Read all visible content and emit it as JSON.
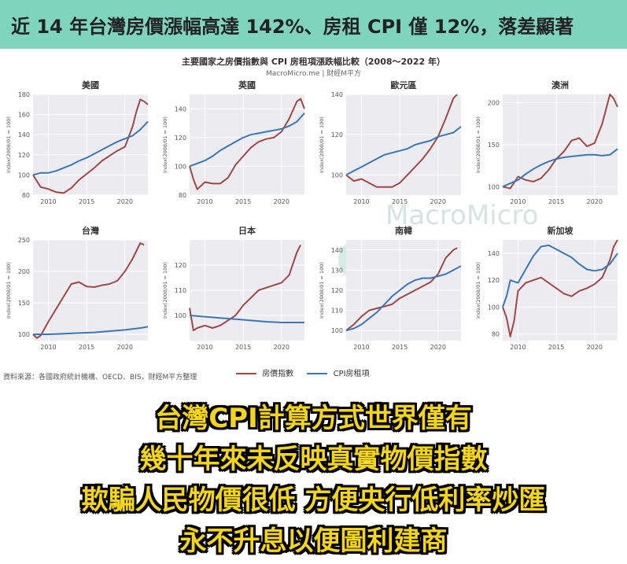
{
  "banner": {
    "title": "近 14 年台灣房價漲幅高達 142%、房租 CPI 僅 12%，落差顯著"
  },
  "chart_header": {
    "title": "主要國家之房價指數與 CPI 房租項漲跌幅比較（2008～2022 年）",
    "source": "MacroMicro.me | 財經M平方"
  },
  "watermark": {
    "text": "MacroMicro",
    "icon": "macromicro-logo-icon"
  },
  "legend": {
    "items": [
      {
        "label": "房價指數",
        "color": "#a04848"
      },
      {
        "label": "CPI房租項",
        "color": "#3a78b5"
      }
    ]
  },
  "source_note": "資料來源：各國政府統計機構、OECD、BIS，財經M平方整理",
  "overlay": {
    "lines": [
      "台灣CPI計算方式世界僅有",
      "幾十年來未反映真實物價指數",
      "欺騙人民物價很低 方便央行低利率炒匯",
      "永不升息以便圖利建商"
    ]
  },
  "chart_data": [
    {
      "type": "line",
      "title": "美國",
      "ylabel": "Index(2008/01 = 100)",
      "ylim": [
        80,
        180
      ],
      "yticks": [
        80,
        100,
        120,
        140,
        160,
        180
      ],
      "xlim": [
        2008,
        2023
      ],
      "xticks": [
        2010,
        2015,
        2020
      ],
      "series": [
        {
          "name": "房價指數",
          "x": [
            2008,
            2009,
            2010,
            2011,
            2012,
            2013,
            2014,
            2015,
            2016,
            2017,
            2018,
            2019,
            2020,
            2021,
            2021.5,
            2022,
            2022.5,
            2023
          ],
          "y": [
            100,
            88,
            86,
            83,
            82,
            87,
            95,
            101,
            107,
            114,
            119,
            124,
            128,
            148,
            163,
            175,
            173,
            170
          ]
        },
        {
          "name": "CPI房租項",
          "x": [
            2008,
            2009,
            2010,
            2011,
            2012,
            2013,
            2014,
            2015,
            2016,
            2017,
            2018,
            2019,
            2020,
            2021,
            2022,
            2023
          ],
          "y": [
            100,
            102,
            102,
            104,
            107,
            110,
            114,
            117,
            121,
            125,
            129,
            133,
            136,
            139,
            145,
            153
          ]
        }
      ]
    },
    {
      "type": "line",
      "title": "英國",
      "ylabel": "Index(2008/01 = 100)",
      "ylim": [
        80,
        150
      ],
      "yticks": [
        80,
        100,
        120,
        140
      ],
      "xlim": [
        2008,
        2023
      ],
      "xticks": [
        2010,
        2015,
        2020
      ],
      "series": [
        {
          "name": "房價指數",
          "x": [
            2008,
            2008.5,
            2009,
            2010,
            2011,
            2012,
            2013,
            2014,
            2015,
            2016,
            2017,
            2018,
            2019,
            2020,
            2021,
            2022,
            2022.5,
            2023
          ],
          "y": [
            100,
            91,
            84,
            89,
            88,
            88,
            92,
            101,
            107,
            113,
            117,
            119,
            120,
            124,
            133,
            145,
            147,
            140
          ]
        },
        {
          "name": "CPI房租項",
          "x": [
            2008,
            2009,
            2010,
            2011,
            2012,
            2013,
            2014,
            2015,
            2016,
            2017,
            2018,
            2019,
            2020,
            2021,
            2022,
            2023
          ],
          "y": [
            100,
            102,
            104,
            107,
            111,
            114,
            117,
            120,
            122,
            123,
            124,
            125,
            126,
            128,
            131,
            137
          ]
        }
      ]
    },
    {
      "type": "line",
      "title": "歐元區",
      "ylabel": "Index(2008/01 = 100)",
      "ylim": [
        90,
        140
      ],
      "yticks": [
        100,
        120,
        140
      ],
      "xlim": [
        2008,
        2023
      ],
      "xticks": [
        2010,
        2015,
        2020
      ],
      "series": [
        {
          "name": "房價指數",
          "x": [
            2008,
            2009,
            2010,
            2011,
            2012,
            2013,
            2014,
            2015,
            2016,
            2017,
            2018,
            2019,
            2020,
            2021,
            2022,
            2022.5
          ],
          "y": [
            100,
            97,
            98,
            96,
            94,
            94,
            94,
            96,
            100,
            104,
            108,
            113,
            119,
            128,
            138,
            140
          ]
        },
        {
          "name": "CPI房租項",
          "x": [
            2008,
            2009,
            2010,
            2011,
            2012,
            2013,
            2014,
            2015,
            2016,
            2017,
            2018,
            2019,
            2020,
            2021,
            2022,
            2023
          ],
          "y": [
            100,
            102,
            104,
            106,
            108,
            110,
            111,
            112,
            113,
            115,
            116,
            117,
            119,
            120,
            121,
            124
          ]
        }
      ]
    },
    {
      "type": "line",
      "title": "澳洲",
      "ylabel": "Index(2008/01 = 100)",
      "ylim": [
        90,
        210
      ],
      "yticks": [
        100,
        150,
        200
      ],
      "xlim": [
        2008,
        2023
      ],
      "xticks": [
        2010,
        2015,
        2020
      ],
      "series": [
        {
          "name": "房價指數",
          "x": [
            2008,
            2009,
            2010,
            2011,
            2012,
            2013,
            2014,
            2015,
            2016,
            2017,
            2018,
            2019,
            2020,
            2021,
            2022,
            2022.5,
            2023
          ],
          "y": [
            100,
            98,
            112,
            108,
            106,
            110,
            120,
            133,
            142,
            155,
            158,
            148,
            152,
            175,
            210,
            205,
            195
          ]
        },
        {
          "name": "CPI房租項",
          "x": [
            2008,
            2009,
            2010,
            2011,
            2012,
            2013,
            2014,
            2015,
            2016,
            2017,
            2018,
            2019,
            2020,
            2021,
            2022,
            2023
          ],
          "y": [
            100,
            104,
            108,
            115,
            121,
            126,
            130,
            133,
            135,
            136,
            137,
            138,
            138,
            137,
            138,
            145
          ]
        }
      ]
    },
    {
      "type": "line",
      "title": "台灣",
      "ylabel": "Index(2008/01 = 100)",
      "ylim": [
        90,
        250
      ],
      "yticks": [
        100,
        150,
        200,
        250
      ],
      "xlim": [
        2008,
        2023
      ],
      "xticks": [
        2010,
        2015,
        2020
      ],
      "series": [
        {
          "name": "房價指數",
          "x": [
            2008,
            2008.5,
            2009,
            2010,
            2011,
            2012,
            2013,
            2014,
            2015,
            2016,
            2017,
            2018,
            2019,
            2020,
            2021,
            2022,
            2022.5
          ],
          "y": [
            100,
            94,
            98,
            120,
            140,
            160,
            180,
            183,
            176,
            175,
            178,
            180,
            185,
            200,
            220,
            245,
            242
          ]
        },
        {
          "name": "CPI房租項",
          "x": [
            2008,
            2010,
            2012,
            2014,
            2016,
            2018,
            2020,
            2022,
            2023
          ],
          "y": [
            100,
            100,
            101,
            102,
            103,
            105,
            107,
            110,
            112
          ]
        }
      ]
    },
    {
      "type": "line",
      "title": "日本",
      "ylabel": "Index(2008/01 = 100)",
      "ylim": [
        90,
        130
      ],
      "yticks": [
        100,
        110,
        120
      ],
      "xlim": [
        2008,
        2023
      ],
      "xticks": [
        2010,
        2015,
        2020
      ],
      "series": [
        {
          "name": "房價指數",
          "x": [
            2008,
            2008.5,
            2009,
            2010,
            2011,
            2012,
            2013,
            2014,
            2015,
            2016,
            2017,
            2018,
            2019,
            2020,
            2021,
            2022,
            2022.5
          ],
          "y": [
            103,
            94,
            95,
            96,
            95,
            96,
            98,
            100,
            104,
            107,
            110,
            111,
            112,
            113,
            116,
            125,
            128
          ]
        },
        {
          "name": "CPI房租項",
          "x": [
            2008,
            2010,
            2012,
            2014,
            2016,
            2018,
            2020,
            2022,
            2023
          ],
          "y": [
            100,
            99.5,
            99,
            98.5,
            98,
            97.5,
            97.2,
            97.2,
            97.2
          ]
        }
      ]
    },
    {
      "type": "line",
      "title": "南韓",
      "ylabel": "Index(2008/01 = 100)",
      "ylim": [
        95,
        145
      ],
      "yticks": [
        100,
        110,
        120,
        130,
        140
      ],
      "xlim": [
        2008,
        2023
      ],
      "xticks": [
        2010,
        2015,
        2020
      ],
      "series": [
        {
          "name": "房價指數",
          "x": [
            2008,
            2009,
            2010,
            2011,
            2012,
            2013,
            2014,
            2015,
            2016,
            2017,
            2018,
            2019,
            2020,
            2021,
            2022,
            2022.5
          ],
          "y": [
            100,
            103,
            107,
            110,
            111,
            112,
            113,
            116,
            118,
            120,
            122,
            124,
            128,
            136,
            140,
            141
          ]
        },
        {
          "name": "CPI房租項",
          "x": [
            2008,
            2009,
            2010,
            2011,
            2012,
            2013,
            2014,
            2015,
            2016,
            2017,
            2018,
            2019,
            2020,
            2021,
            2022,
            2023
          ],
          "y": [
            100,
            101,
            103,
            106,
            109,
            113,
            117,
            120,
            123,
            125,
            126,
            126,
            127,
            128,
            130,
            132
          ]
        }
      ]
    },
    {
      "type": "line",
      "title": "新加坡",
      "ylabel": "Index(2008/01 = 100)",
      "ylim": [
        75,
        150
      ],
      "yticks": [
        80,
        100,
        120,
        140
      ],
      "xlim": [
        2008,
        2023
      ],
      "xticks": [
        2010,
        2015,
        2020
      ],
      "series": [
        {
          "name": "房價指數",
          "x": [
            2008,
            2008.5,
            2009,
            2009.5,
            2010,
            2011,
            2012,
            2013,
            2014,
            2015,
            2016,
            2017,
            2018,
            2019,
            2020,
            2021,
            2022,
            2022.5,
            2023
          ],
          "y": [
            100,
            92,
            78,
            90,
            112,
            118,
            120,
            122,
            118,
            114,
            110,
            108,
            112,
            114,
            117,
            122,
            135,
            145,
            150
          ]
        },
        {
          "name": "CPI房租項",
          "x": [
            2008,
            2008.5,
            2009,
            2010,
            2011,
            2012,
            2013,
            2014,
            2015,
            2016,
            2017,
            2018,
            2019,
            2020,
            2021,
            2022,
            2023
          ],
          "y": [
            100,
            108,
            120,
            118,
            128,
            138,
            145,
            146,
            143,
            140,
            137,
            132,
            128,
            127,
            128,
            132,
            140
          ]
        }
      ]
    }
  ]
}
